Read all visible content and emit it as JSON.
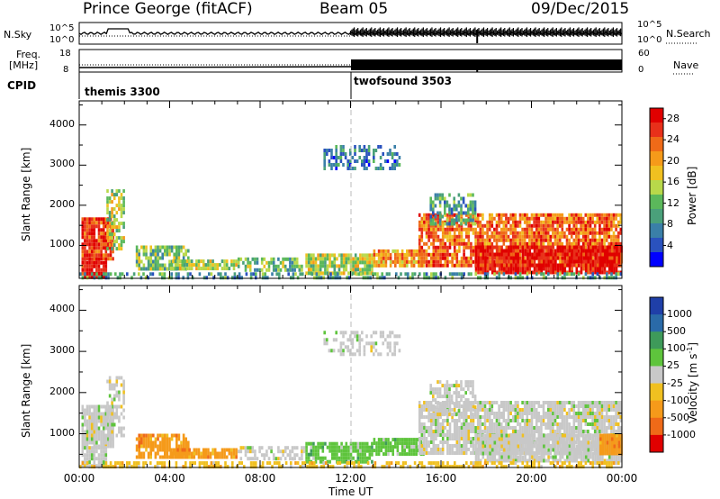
{
  "header": {
    "title": "Prince George (fitACF)",
    "beam": "Beam 05",
    "date": "09/Dec/2015"
  },
  "top_panels": {
    "nsky_label": "N.Sky",
    "nsky_ticks": [
      "10^5",
      "10^0"
    ],
    "nsearch_label": "N.Search",
    "nsearch_ticks": [
      "10^5",
      "10^0"
    ],
    "freq_label": "Freq.",
    "freq_unit": "[MHz]",
    "freq_ticks": [
      "18",
      "8"
    ],
    "nave_label": "Nave",
    "nave_ticks": [
      "60",
      "0"
    ],
    "cpid_label": "CPID",
    "cpid_segments": [
      {
        "name": "themis 3300",
        "start_hour": 0
      },
      {
        "name": "twofsound 3503",
        "start_hour": 12
      }
    ]
  },
  "chart_data": [
    {
      "type": "heatmap",
      "name": "Power",
      "ylabel": "Slant Range [km]",
      "xlabel": "Time UT",
      "x_ticks": [
        "00:00",
        "04:00",
        "08:00",
        "12:00",
        "16:00",
        "20:00",
        "00:00"
      ],
      "xlim_hours": [
        0,
        24
      ],
      "y_ticks": [
        "1000",
        "2000",
        "3000",
        "4000"
      ],
      "ylim_km": [
        180,
        4600
      ],
      "colorbar": {
        "label": "Power [dB]",
        "ticks": [
          "4",
          "8",
          "12",
          "16",
          "20",
          "24",
          "28"
        ],
        "range": [
          0,
          30
        ],
        "colors": [
          "#0000ff",
          "#2a52be",
          "#3a7fa8",
          "#4aa07a",
          "#5bb85b",
          "#b8d84a",
          "#f0c020",
          "#f59a1a",
          "#ef6a18",
          "#e8301a",
          "#e00000"
        ]
      }
    },
    {
      "type": "heatmap",
      "name": "Velocity",
      "ylabel": "Slant Range [km]",
      "xlabel": "Time UT",
      "x_ticks": [
        "00:00",
        "04:00",
        "08:00",
        "12:00",
        "16:00",
        "20:00",
        "00:00"
      ],
      "xlim_hours": [
        0,
        24
      ],
      "y_ticks": [
        "1000",
        "2000",
        "3000",
        "4000"
      ],
      "ylim_km": [
        180,
        4600
      ],
      "colorbar": {
        "label": "Velocity [m s",
        "label_sup": "-1",
        "label_end": "]",
        "ticks": [
          "1000",
          "500",
          "100",
          "25",
          "-25",
          "-100",
          "-500",
          "-1000"
        ],
        "colors": [
          "#1f3fa8",
          "#2a6aa8",
          "#3e9a5a",
          "#5ec43c",
          "#c8c8c8",
          "#f0c020",
          "#f59a1a",
          "#ef6a18",
          "#e00000"
        ]
      }
    }
  ],
  "x_axis_title": "Time UT"
}
